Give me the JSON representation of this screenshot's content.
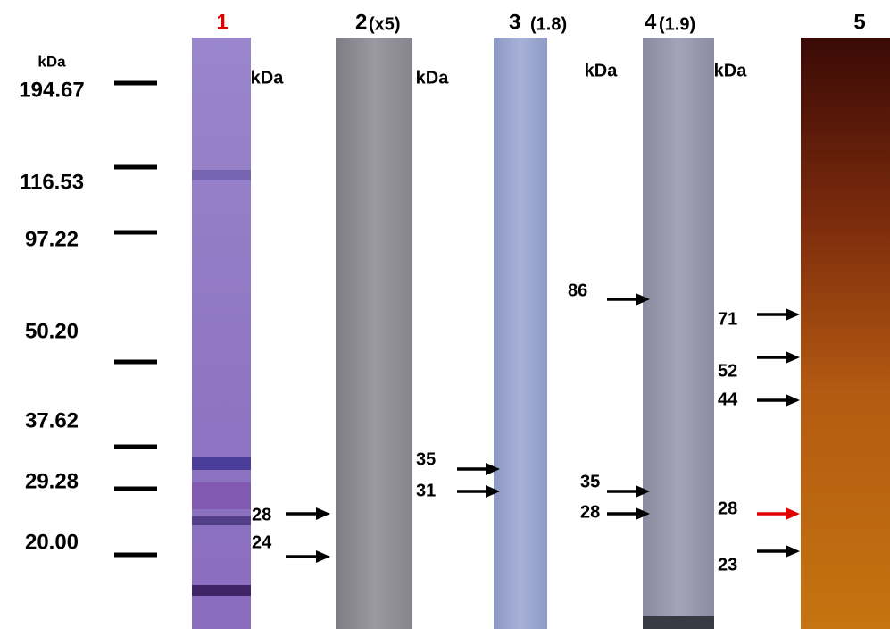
{
  "marker": {
    "unit": "kDa",
    "labels": [
      "194.67",
      "116.53",
      "97.22",
      "50.20",
      "37.62",
      "29.28",
      "20.00"
    ]
  },
  "lanes": [
    {
      "label": "1"
    },
    {
      "label": "2",
      "note": "(x5)"
    },
    {
      "label": "3",
      "note": "(1.8)"
    },
    {
      "label": "4",
      "note": "(1.9)"
    },
    {
      "label": "5"
    }
  ],
  "units": [
    "kDa",
    "kDa",
    "kDa",
    "kDa"
  ],
  "bands": {
    "lane2": [
      "28",
      "24"
    ],
    "lane3": [
      "35",
      "31"
    ],
    "lane4": [
      "86",
      "35",
      "28"
    ],
    "lane5": [
      "71",
      "52",
      "44",
      "28",
      "23"
    ]
  }
}
